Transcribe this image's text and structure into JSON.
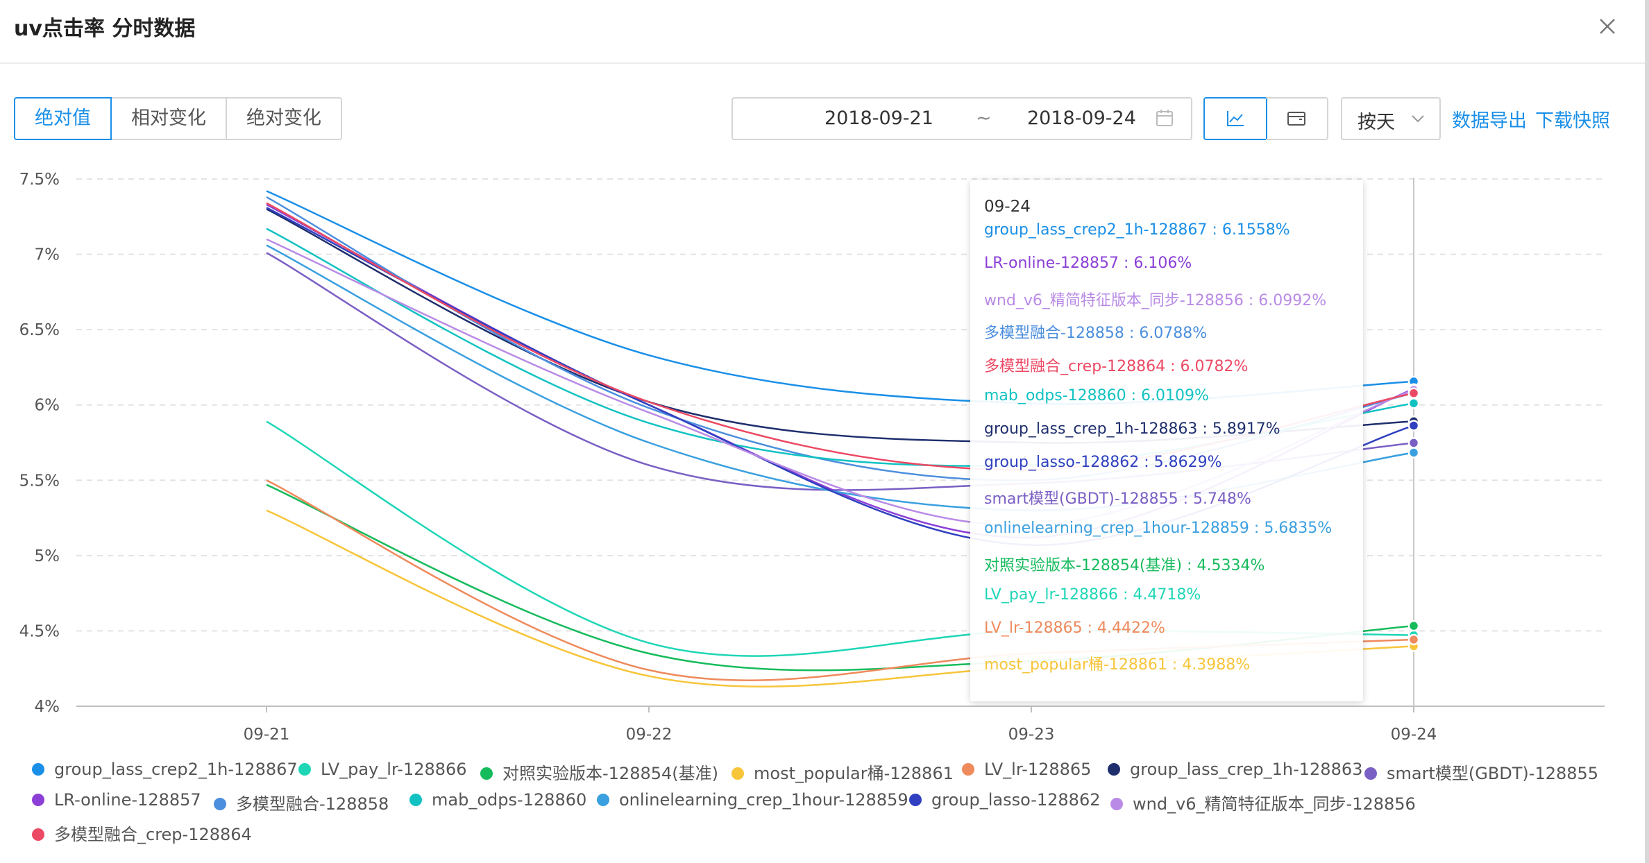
{
  "dialog": {
    "title": "uv点击率 分时数据",
    "close_icon": "close-icon"
  },
  "toolbar": {
    "tabs": [
      "绝对值",
      "相对变化",
      "绝对变化"
    ],
    "active_tab": "绝对值",
    "date_start": "2018-09-21",
    "date_separator": "~",
    "date_end": "2018-09-24",
    "calendar_icon": "calendar-icon",
    "view_line_icon": "line-chart-icon",
    "view_table_icon": "table-icon",
    "granularity": "按天",
    "export_label": "数据导出",
    "snapshot_label": "下载快照",
    "accent_color": "#1a8fe8"
  },
  "tooltip": {
    "date": "09-24",
    "rows": [
      {
        "text": "group_lass_crep2_1h-128867 : 6.1558%",
        "color": "#1a8fe8"
      },
      {
        "text": "LR-online-128857 : 6.106%",
        "color": "#8b3fd6"
      },
      {
        "text": "wnd_v6_精简特征版本_同步-128856 : 6.0992%",
        "color": "#b98be6"
      },
      {
        "text": "多模型融合-128858 : 6.0788%",
        "color": "#4c8fde"
      },
      {
        "text": "多模型融合_crep-128864 : 6.0782%",
        "color": "#ec4964"
      },
      {
        "text": "mab_odps-128860 : 6.0109%",
        "color": "#12c2c2"
      },
      {
        "text": "group_lass_crep_1h-128863 : 5.8917%",
        "color": "#1f2f6e"
      },
      {
        "text": "group_lasso-128862 : 5.8629%",
        "color": "#3040c0"
      },
      {
        "text": "smart模型(GBDT)-128855 : 5.748%",
        "color": "#7a5fc4"
      },
      {
        "text": "onlinelearning_crep_1hour-128859 : 5.6835%",
        "color": "#3aa0e0"
      },
      {
        "text": "对照实验版本-128854(基准) : 4.5334%",
        "color": "#16bb5c"
      },
      {
        "text": "LV_pay_lr-128866 : 4.4718%",
        "color": "#1ed6b6"
      },
      {
        "text": "LV_lr-128865 : 4.4422%",
        "color": "#ee8a5c"
      },
      {
        "text": "most_popular桶-128861 : 4.3988%",
        "color": "#f7c53a"
      }
    ]
  },
  "chart_data": {
    "type": "line",
    "title": "",
    "xlabel": "",
    "ylabel": "",
    "categories": [
      "09-21",
      "09-22",
      "09-23",
      "09-24"
    ],
    "ylim": [
      4,
      7.5
    ],
    "y_ticks": [
      "4%",
      "4.5%",
      "5%",
      "5.5%",
      "6%",
      "6.5%",
      "7%",
      "7.5%"
    ],
    "y_unit": "%",
    "grid": "horizontal dashed",
    "legend_position": "bottom",
    "crosshair_at": "09-24",
    "series": [
      {
        "name": "group_lass_crep2_1h-128867",
        "color": "#1a8fe8",
        "values": [
          7.42,
          6.33,
          6.01,
          6.1558
        ]
      },
      {
        "name": "LV_pay_lr-128866",
        "color": "#1ed6b6",
        "values": [
          5.89,
          4.42,
          4.5,
          4.4718
        ]
      },
      {
        "name": "对照实验版本-128854(基准)",
        "color": "#16bb5c",
        "values": [
          5.47,
          4.35,
          4.3,
          4.5334
        ]
      },
      {
        "name": "most_popular桶-128861",
        "color": "#f7c53a",
        "values": [
          5.3,
          4.2,
          4.26,
          4.3988
        ]
      },
      {
        "name": "LV_lr-128865",
        "color": "#ee8a5c",
        "values": [
          5.5,
          4.24,
          4.35,
          4.4422
        ]
      },
      {
        "name": "group_lass_crep_1h-128863",
        "color": "#1f2f6e",
        "values": [
          7.3,
          6.02,
          5.75,
          5.8917
        ]
      },
      {
        "name": "smart模型(GBDT)-128855",
        "color": "#7a5fc4",
        "values": [
          7.01,
          5.6,
          5.48,
          5.748
        ]
      },
      {
        "name": "LR-online-128857",
        "color": "#8b3fd6",
        "values": [
          7.33,
          6.0,
          5.12,
          6.106
        ]
      },
      {
        "name": "多模型融合-128858",
        "color": "#4c8fde",
        "values": [
          7.38,
          5.98,
          5.5,
          6.0788
        ]
      },
      {
        "name": "mab_odps-128860",
        "color": "#12c2c2",
        "values": [
          7.17,
          5.88,
          5.6,
          6.0109
        ]
      },
      {
        "name": "onlinelearning_crep_1hour-128859",
        "color": "#3aa0e0",
        "values": [
          7.06,
          5.75,
          5.3,
          5.6835
        ]
      },
      {
        "name": "group_lasso-128862",
        "color": "#3040c0",
        "values": [
          7.31,
          6.0,
          5.07,
          5.8629
        ]
      },
      {
        "name": "wnd_v6_精简特征版本_同步-128856",
        "color": "#b98be6",
        "values": [
          7.1,
          5.95,
          5.2,
          6.0992
        ]
      },
      {
        "name": "多模型融合_crep-128864",
        "color": "#ec4964",
        "values": [
          7.34,
          6.02,
          5.57,
          6.0782
        ]
      }
    ]
  }
}
